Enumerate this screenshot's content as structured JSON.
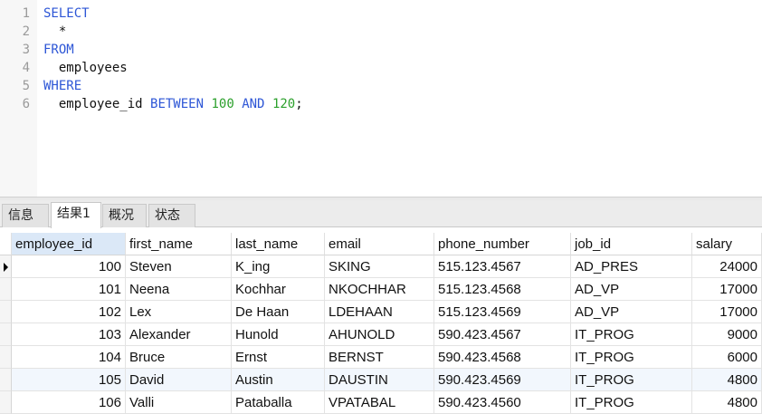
{
  "editor": {
    "lines": [
      {
        "no": "1",
        "parts": [
          {
            "t": "SELECT",
            "c": "kw"
          }
        ]
      },
      {
        "no": "2",
        "parts": [
          {
            "t": "  *",
            "c": "txt"
          }
        ]
      },
      {
        "no": "3",
        "parts": [
          {
            "t": "FROM",
            "c": "kw"
          }
        ]
      },
      {
        "no": "4",
        "parts": [
          {
            "t": "  employees",
            "c": "txt"
          }
        ]
      },
      {
        "no": "5",
        "parts": [
          {
            "t": "WHERE",
            "c": "kw"
          }
        ]
      },
      {
        "no": "6",
        "parts": [
          {
            "t": "  employee_id ",
            "c": "txt"
          },
          {
            "t": "BETWEEN",
            "c": "kw"
          },
          {
            "t": " ",
            "c": "txt"
          },
          {
            "t": "100",
            "c": "num"
          },
          {
            "t": " ",
            "c": "txt"
          },
          {
            "t": "AND",
            "c": "kw"
          },
          {
            "t": " ",
            "c": "txt"
          },
          {
            "t": "120",
            "c": "num"
          },
          {
            "t": ";",
            "c": "txt"
          }
        ]
      }
    ],
    "colors": {
      "keyword": "#2d56d6",
      "number": "#2ca02c"
    }
  },
  "tabs": [
    {
      "label": "信息",
      "active": false
    },
    {
      "label": "结果1",
      "active": true
    },
    {
      "label": "概况",
      "active": false
    },
    {
      "label": "状态",
      "active": false
    }
  ],
  "result": {
    "columns": [
      "employee_id",
      "first_name",
      "last_name",
      "email",
      "phone_number",
      "job_id",
      "salary"
    ],
    "selected_column": "employee_id",
    "current_row": 0,
    "highlighted_row": 5,
    "rows": [
      [
        "100",
        "Steven",
        "K_ing",
        "SKING",
        "515.123.4567",
        "AD_PRES",
        "24000"
      ],
      [
        "101",
        "Neena",
        "Kochhar",
        "NKOCHHAR",
        "515.123.4568",
        "AD_VP",
        "17000"
      ],
      [
        "102",
        "Lex",
        "De Haan",
        "LDEHAAN",
        "515.123.4569",
        "AD_VP",
        "17000"
      ],
      [
        "103",
        "Alexander",
        "Hunold",
        "AHUNOLD",
        "590.423.4567",
        "IT_PROG",
        "9000"
      ],
      [
        "104",
        "Bruce",
        "Ernst",
        "BERNST",
        "590.423.4568",
        "IT_PROG",
        "6000"
      ],
      [
        "105",
        "David",
        "Austin",
        "DAUSTIN",
        "590.423.4569",
        "IT_PROG",
        "4800"
      ],
      [
        "106",
        "Valli",
        "Pataballa",
        "VPATABAL",
        "590.423.4560",
        "IT_PROG",
        "4800"
      ]
    ]
  }
}
